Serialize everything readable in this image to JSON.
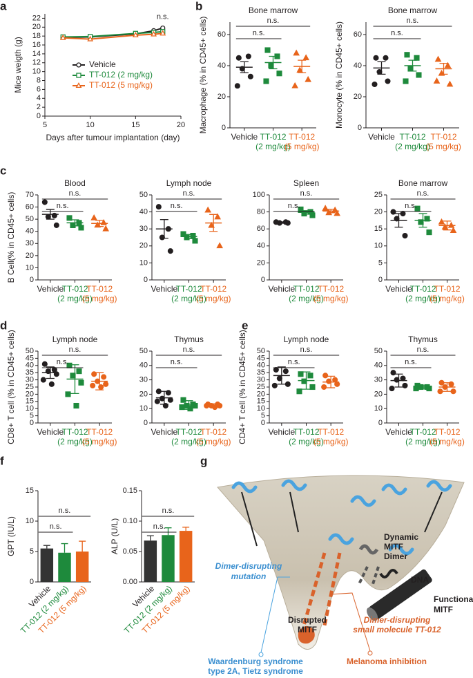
{
  "chart_data": [
    {
      "type": "line",
      "panel": "a",
      "xlabel": "Days after tumour implantation (day)",
      "ylabel": "Mice weigth (g)",
      "annotation": "n.s.",
      "x": [
        7,
        10,
        15,
        17,
        18
      ],
      "xlim": [
        5,
        20
      ],
      "xticks": [
        5,
        10,
        15,
        20
      ],
      "ylim": [
        0,
        23
      ],
      "yticks": [
        0,
        2,
        4,
        6,
        8,
        10,
        12,
        14,
        16,
        18,
        20,
        22
      ],
      "legend": "center",
      "series": [
        {
          "name": "Vehicle",
          "color": "#231f20",
          "marker": "circle",
          "values": [
            17.7,
            17.8,
            18.5,
            19.2,
            19.8
          ]
        },
        {
          "name": "TT-012 (2 mg/kg)",
          "color": "#1e8a3c",
          "marker": "square",
          "values": [
            17.8,
            17.9,
            18.6,
            18.8,
            19.0
          ]
        },
        {
          "name": "TT-012 (5 mg/kg)",
          "color": "#e8641b",
          "marker": "triangle",
          "values": [
            17.6,
            17.3,
            18.2,
            18.4,
            18.6
          ]
        }
      ]
    },
    {
      "type": "dot",
      "panel": "b",
      "title": "Bone marrow",
      "ylabel": "Macrophage (% in CD45+ cells)",
      "ylim": [
        0,
        68
      ],
      "yticks": [
        0,
        20,
        40,
        60
      ],
      "brackets": [
        "n.s.",
        "n.s."
      ],
      "groups": [
        {
          "label": [
            "Vehicle"
          ],
          "color": "#231f20",
          "marker": "circle",
          "values": [
            45,
            46,
            38,
            33,
            27
          ],
          "mean": 39,
          "error": 3.5
        },
        {
          "label": [
            "TT-012",
            "(2 mg/kg)"
          ],
          "color": "#1e8a3c",
          "marker": "square",
          "values": [
            50,
            46,
            40,
            35,
            30
          ],
          "mean": 42,
          "error": 4
        },
        {
          "label": [
            "TT-012",
            "(5 mg/kg)"
          ],
          "color": "#e8641b",
          "marker": "triangle",
          "values": [
            48,
            45,
            37,
            31,
            27
          ],
          "mean": 39.5,
          "error": 4
        }
      ]
    },
    {
      "type": "dot",
      "title": "Bone marrow",
      "ylabel": "Monocyte (% in CD45+ cells)",
      "ylim": [
        0,
        68
      ],
      "yticks": [
        0,
        20,
        40,
        60
      ],
      "brackets": [
        "n.s.",
        "n.s."
      ],
      "groups": [
        {
          "label": [
            "Vehicle"
          ],
          "color": "#231f20",
          "marker": "circle",
          "values": [
            45,
            45,
            36,
            30,
            28
          ],
          "mean": 38.5,
          "error": 4
        },
        {
          "label": [
            "TT-012",
            "(2 mg/kg)"
          ],
          "color": "#1e8a3c",
          "marker": "square",
          "values": [
            47,
            45,
            38,
            34,
            30
          ],
          "mean": 40,
          "error": 3.5
        },
        {
          "label": [
            "TT-012",
            "(5 mg/kg)"
          ],
          "color": "#e8641b",
          "marker": "triangle",
          "values": [
            44,
            40,
            35,
            28,
            30
          ],
          "mean": 38,
          "error": 3.5
        }
      ]
    },
    {
      "type": "dot",
      "panel": "c",
      "title": "Blood",
      "ylabel": "B Cell(% in CD45+ cells)",
      "ylim": [
        0,
        70
      ],
      "yticks": [
        0,
        10,
        20,
        30,
        40,
        50,
        60,
        70
      ],
      "brackets": [
        "n.s.",
        "n.s."
      ],
      "groups": [
        {
          "label": [
            "Vehicle"
          ],
          "color": "#231f20",
          "marker": "circle",
          "values": [
            64,
            53,
            52,
            45
          ],
          "mean": 54,
          "error": 4
        },
        {
          "label": [
            "TT-012",
            "(2 mg/kg)"
          ],
          "color": "#1e8a3c",
          "marker": "square",
          "values": [
            51,
            47,
            45,
            43
          ],
          "mean": 47,
          "error": 2.5
        },
        {
          "label": [
            "TT-012",
            "(5 mg/kg)"
          ],
          "color": "#e8641b",
          "marker": "triangle",
          "values": [
            51,
            47,
            45,
            42
          ],
          "mean": 46.5,
          "error": 2.5
        }
      ]
    },
    {
      "type": "dot",
      "title": "Lymph node",
      "ylim": [
        0,
        50
      ],
      "yticks": [
        0,
        10,
        20,
        30,
        40,
        50
      ],
      "brackets": [
        "n.s.",
        "n.s."
      ],
      "groups": [
        {
          "label": [
            "Vehicle"
          ],
          "color": "#231f20",
          "marker": "circle",
          "values": [
            43,
            30,
            25,
            17
          ],
          "mean": 30,
          "error": 5.5
        },
        {
          "label": [
            "TT-012",
            "(2 mg/kg)"
          ],
          "color": "#1e8a3c",
          "marker": "square",
          "values": [
            27,
            26,
            25,
            23
          ],
          "mean": 25.5,
          "error": 1.2
        },
        {
          "label": [
            "TT-012",
            "(5 mg/kg)"
          ],
          "color": "#e8641b",
          "marker": "triangle",
          "values": [
            41,
            37,
            32,
            20
          ],
          "mean": 33.5,
          "error": 5
        }
      ]
    },
    {
      "type": "dot",
      "title": "Spleen",
      "ylim": [
        0,
        100
      ],
      "yticks": [
        0,
        20,
        40,
        60,
        80,
        100
      ],
      "brackets": [
        "n.s.",
        "n.s."
      ],
      "groups": [
        {
          "label": [
            "Vehicle"
          ],
          "color": "#231f20",
          "marker": "circle",
          "values": [
            68,
            68,
            67,
            67
          ],
          "mean": 67.5,
          "error": 0.8
        },
        {
          "label": [
            "TT-012",
            "(2 mg/kg)"
          ],
          "color": "#1e8a3c",
          "marker": "square",
          "values": [
            83,
            80,
            78,
            76
          ],
          "mean": 79.5,
          "error": 2
        },
        {
          "label": [
            "TT-012",
            "(5 mg/kg)"
          ],
          "color": "#e8641b",
          "marker": "triangle",
          "values": [
            84,
            82,
            79,
            78
          ],
          "mean": 81,
          "error": 2
        }
      ]
    },
    {
      "type": "dot",
      "title": "Bone marrow",
      "ylim": [
        0,
        25
      ],
      "yticks": [
        0,
        5,
        10,
        15,
        20,
        25
      ],
      "brackets": [
        "n.s.",
        "n.s."
      ],
      "groups": [
        {
          "label": [
            "Vehicle"
          ],
          "color": "#231f20",
          "marker": "circle",
          "values": [
            20,
            19.5,
            18,
            13
          ],
          "mean": 17.5,
          "error": 2
        },
        {
          "label": [
            "TT-012",
            "(2 mg/kg)"
          ],
          "color": "#1e8a3c",
          "marker": "square",
          "values": [
            21,
            18,
            17,
            14
          ],
          "mean": 17.5,
          "error": 2
        },
        {
          "label": [
            "TT-012",
            "(5 mg/kg)"
          ],
          "color": "#e8641b",
          "marker": "triangle",
          "values": [
            17,
            16,
            15.5,
            14.5
          ],
          "mean": 16,
          "error": 1.3
        }
      ]
    },
    {
      "type": "dot",
      "panel": "d",
      "title": "Lymph node",
      "ylabel": "CD8+ T cell (% in CD45+ cells)",
      "ylim": [
        0,
        50
      ],
      "yticks": [
        0,
        5,
        10,
        15,
        20,
        25,
        30,
        35,
        40,
        45,
        50
      ],
      "brackets": [
        "n.s.",
        "n.s."
      ],
      "groups": [
        {
          "label": [
            "Vehicle"
          ],
          "color": "#231f20",
          "marker": "circle",
          "values": [
            41,
            37,
            36,
            34,
            30,
            27
          ],
          "mean": 35,
          "error": 4
        },
        {
          "label": [
            "TT-012",
            "(2 mg/kg)"
          ],
          "color": "#1e8a3c",
          "marker": "square",
          "values": [
            40,
            36,
            33,
            28,
            20,
            12
          ],
          "mean": 30.5,
          "error": 10
        },
        {
          "label": [
            "TT-012",
            "(5 mg/kg)"
          ],
          "color": "#e8641b",
          "marker": "circle",
          "values": [
            34,
            32,
            29,
            27,
            26,
            25
          ],
          "mean": 29,
          "error": 6
        }
      ]
    },
    {
      "type": "dot",
      "title": "Thymus",
      "ylim": [
        0,
        50
      ],
      "yticks": [
        0,
        10,
        20,
        30,
        40,
        50
      ],
      "brackets": [
        "n.s.",
        "n.s."
      ],
      "groups": [
        {
          "label": [
            "Vehicle"
          ],
          "color": "#231f20",
          "marker": "circle",
          "values": [
            22,
            21,
            17,
            16,
            15,
            12
          ],
          "mean": 17.5,
          "error": 4.5
        },
        {
          "label": [
            "TT-012",
            "(2 mg/kg)"
          ],
          "color": "#1e8a3c",
          "marker": "square",
          "values": [
            16,
            13,
            12,
            12,
            11,
            10
          ],
          "mean": 12.5,
          "error": 3
        },
        {
          "label": [
            "TT-012",
            "(5 mg/kg)"
          ],
          "color": "#e8641b",
          "marker": "circle",
          "values": [
            13,
            13,
            12,
            12,
            12,
            11
          ],
          "mean": 12.3,
          "error": 1
        }
      ]
    },
    {
      "type": "dot",
      "panel": "e",
      "title": "Lymph node",
      "ylabel": "CD4+ T cell (% in CD45+ cells)",
      "ylim": [
        0,
        50
      ],
      "yticks": [
        0,
        5,
        10,
        15,
        20,
        25,
        30,
        35,
        40,
        45,
        50
      ],
      "brackets": [
        "n.s.",
        "n.s."
      ],
      "groups": [
        {
          "label": [
            "Vehicle"
          ],
          "color": "#231f20",
          "marker": "circle",
          "values": [
            37,
            36,
            31,
            27,
            26
          ],
          "mean": 33,
          "error": 6
        },
        {
          "label": [
            "TT-012",
            "(2 mg/kg)"
          ],
          "color": "#1e8a3c",
          "marker": "square",
          "values": [
            34,
            33,
            29,
            25,
            22
          ],
          "mean": 29.5,
          "error": 6
        },
        {
          "label": [
            "TT-012",
            "(5 mg/kg)"
          ],
          "color": "#e8641b",
          "marker": "circle",
          "values": [
            33,
            30,
            29,
            27,
            25
          ],
          "mean": 28.5,
          "error": 4
        }
      ]
    },
    {
      "type": "dot",
      "title": "Thymus",
      "ylim": [
        0,
        50
      ],
      "yticks": [
        0,
        10,
        20,
        30,
        40,
        50
      ],
      "brackets": [
        "n.s.",
        "n.s."
      ],
      "groups": [
        {
          "label": [
            "Vehicle"
          ],
          "color": "#231f20",
          "marker": "circle",
          "values": [
            35,
            31,
            30,
            26,
            24
          ],
          "mean": 29.5,
          "error": 4.5
        },
        {
          "label": [
            "TT-012",
            "(2 mg/kg)"
          ],
          "color": "#1e8a3c",
          "marker": "square",
          "values": [
            26,
            25,
            25,
            24,
            24
          ],
          "mean": 25,
          "error": 1
        },
        {
          "label": [
            "TT-012",
            "(5 mg/kg)"
          ],
          "color": "#e8641b",
          "marker": "circle",
          "values": [
            28,
            27,
            25,
            22,
            22
          ],
          "mean": 25,
          "error": 3
        }
      ]
    },
    {
      "type": "bar",
      "panel": "f",
      "ylabel": "GPT (IU/L)",
      "ylim": [
        0,
        15
      ],
      "yticks": [
        0,
        5,
        10,
        15
      ],
      "brackets": [
        "n.s.",
        "n.s."
      ],
      "categories": [
        "Vehicle",
        "TT-012 (2 mg/kg)",
        "TT-012 (5 mg/kg)"
      ],
      "colors": [
        "#333333",
        "#1e8a3c",
        "#e8641b"
      ],
      "values": [
        5.5,
        4.8,
        5.0
      ],
      "errors": [
        0.5,
        1.5,
        1.7
      ]
    },
    {
      "type": "bar",
      "ylabel": "ALP (U/L)",
      "ylim": [
        0,
        0.15
      ],
      "yticks": [
        {
          "value": 0,
          "label": "0.00"
        },
        0.05,
        {
          "value": 0.1,
          "label": "0.10"
        },
        0.15
      ],
      "brackets": [
        "n.s.",
        "n.s."
      ],
      "categories": [
        "Vehicle",
        "TT-012 (2 mg/kg)",
        "TT-012 (5 mg/kg)"
      ],
      "colors": [
        "#333333",
        "#1e8a3c",
        "#e8641b"
      ],
      "values": [
        0.068,
        0.077,
        0.084
      ],
      "errors": [
        0.008,
        0.012,
        0.006
      ]
    }
  ],
  "diagram": {
    "panel": "g",
    "dynamic_dimer": [
      "Dynamic",
      "MITF",
      "Dimer"
    ],
    "dna": "DNA",
    "functional": [
      "Functional",
      "MITF"
    ],
    "mutation": [
      "Dimer-disrupting",
      "mutation"
    ],
    "disrupted": [
      "Disrupted",
      "MITF"
    ],
    "small_molecule": [
      "Dimer-disrupting",
      "small molecule TT-012"
    ],
    "syndrome": [
      "Waardenburg syndrome",
      "type 2A, Tietz syndrome"
    ],
    "melanoma": "Melanoma inhibition"
  }
}
